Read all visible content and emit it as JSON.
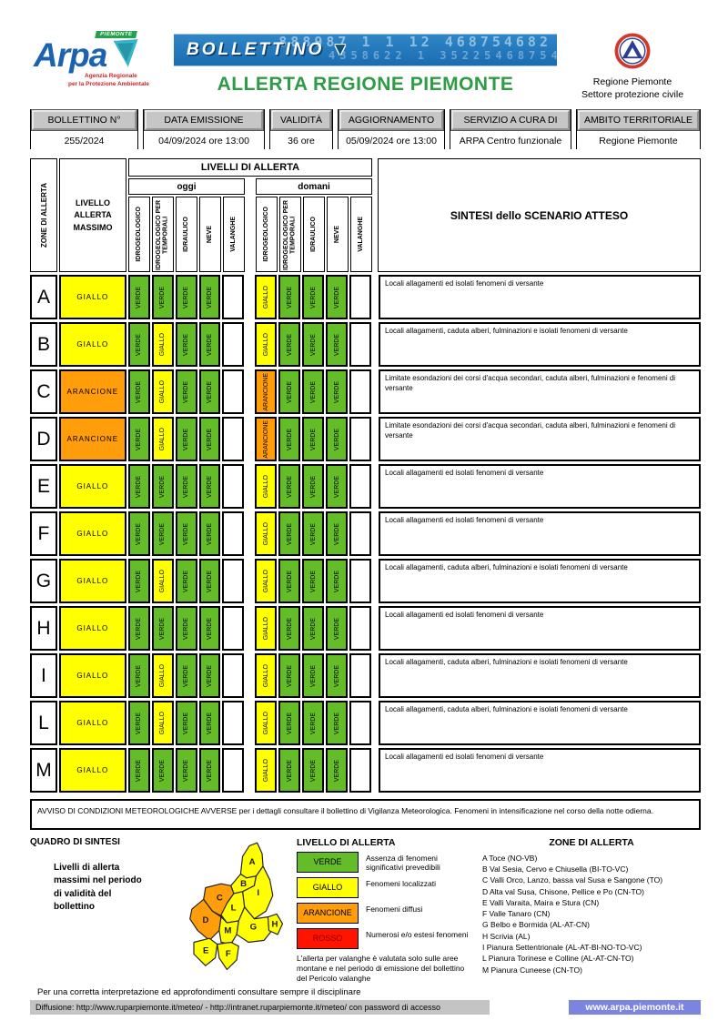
{
  "header": {
    "arpa": {
      "word": "Arpa",
      "flag": "PIEMONTE",
      "caption1": "Agenzia Regionale",
      "caption2": "per la Protezione Ambientale"
    },
    "banner": {
      "title": "BOLLETTINO",
      "digits_top": "888987 1 1 12   468754682",
      "digits_bottom": "4358622 1 352254687546"
    },
    "org": {
      "line1": "Regione Piemonte",
      "line2": "Settore protezione civile"
    },
    "title": "ALLERTA REGIONE PIEMONTE"
  },
  "info_table": {
    "columns": [
      {
        "label": "BOLLETTINO N°",
        "value": "255/2024"
      },
      {
        "label": "DATA EMISSIONE",
        "value": "04/09/2024 ore 13:00"
      },
      {
        "label": "VALIDITÀ",
        "value": "36 ore"
      },
      {
        "label": "AGGIORNAMENTO",
        "value": "05/09/2024 ore 13:00"
      },
      {
        "label": "SERVIZIO A CURA DI",
        "value": "ARPA Centro funzionale"
      },
      {
        "label": "AMBITO TERRITORIALE",
        "value": "Regione Piemonte"
      }
    ]
  },
  "colors": {
    "VERDE": "#64bd28",
    "GIALLO": "#ffff00",
    "ARANCIONE": "#ff9d0a",
    "ROSSO": "#ff1400"
  },
  "alert_table": {
    "corner": "ZONE DI ALLERTA",
    "max_header": "LIVELLO\nALLERTA\nMASSIMO",
    "levels_header": "LIVELLI DI ALLERTA",
    "day_headers": [
      "oggi",
      "domani"
    ],
    "hazard_labels": [
      "IDROGEOLOGICO",
      "IDROGEOLOGICO PER TEMPORALI",
      "IDRAULICO",
      "NEVE",
      "VALANGHE"
    ],
    "sintesi_header": "SINTESI dello SCENARIO ATTESO",
    "rows": [
      {
        "zone": "A",
        "max": "GIALLO",
        "oggi": [
          "VERDE",
          "VERDE",
          "VERDE",
          "VERDE",
          ""
        ],
        "domani": [
          "GIALLO",
          "VERDE",
          "VERDE",
          "VERDE",
          ""
        ],
        "sintesi": "Locali allagamenti ed isolati fenomeni di versante"
      },
      {
        "zone": "B",
        "max": "GIALLO",
        "oggi": [
          "VERDE",
          "GIALLO",
          "VERDE",
          "VERDE",
          ""
        ],
        "domani": [
          "GIALLO",
          "VERDE",
          "VERDE",
          "VERDE",
          ""
        ],
        "sintesi": "Locali allagamenti, caduta alberi, fulminazioni e isolati fenomeni di versante"
      },
      {
        "zone": "C",
        "max": "ARANCIONE",
        "oggi": [
          "VERDE",
          "GIALLO",
          "VERDE",
          "VERDE",
          ""
        ],
        "domani": [
          "ARANCIONE",
          "VERDE",
          "VERDE",
          "VERDE",
          ""
        ],
        "sintesi": "Limitate esondazioni dei corsi d'acqua secondari, caduta alberi, fulminazioni e fenomeni di versante"
      },
      {
        "zone": "D",
        "max": "ARANCIONE",
        "oggi": [
          "VERDE",
          "GIALLO",
          "VERDE",
          "VERDE",
          ""
        ],
        "domani": [
          "ARANCIONE",
          "VERDE",
          "VERDE",
          "VERDE",
          ""
        ],
        "sintesi": "Limitate esondazioni dei corsi d'acqua secondari, caduta alberi, fulminazioni e fenomeni di versante"
      },
      {
        "zone": "E",
        "max": "GIALLO",
        "oggi": [
          "VERDE",
          "VERDE",
          "VERDE",
          "VERDE",
          ""
        ],
        "domani": [
          "GIALLO",
          "VERDE",
          "VERDE",
          "VERDE",
          ""
        ],
        "sintesi": "Locali allagamenti ed isolati fenomeni di versante"
      },
      {
        "zone": "F",
        "max": "GIALLO",
        "oggi": [
          "VERDE",
          "VERDE",
          "VERDE",
          "VERDE",
          ""
        ],
        "domani": [
          "GIALLO",
          "VERDE",
          "VERDE",
          "VERDE",
          ""
        ],
        "sintesi": "Locali allagamenti ed isolati fenomeni di versante"
      },
      {
        "zone": "G",
        "max": "GIALLO",
        "oggi": [
          "VERDE",
          "GIALLO",
          "VERDE",
          "VERDE",
          ""
        ],
        "domani": [
          "GIALLO",
          "VERDE",
          "VERDE",
          "VERDE",
          ""
        ],
        "sintesi": "Locali allagamenti, caduta alberi, fulminazioni e isolati fenomeni di versante"
      },
      {
        "zone": "H",
        "max": "GIALLO",
        "oggi": [
          "VERDE",
          "VERDE",
          "VERDE",
          "VERDE",
          ""
        ],
        "domani": [
          "GIALLO",
          "VERDE",
          "VERDE",
          "VERDE",
          ""
        ],
        "sintesi": "Locali allagamenti ed isolati fenomeni di versante"
      },
      {
        "zone": "I",
        "max": "GIALLO",
        "oggi": [
          "VERDE",
          "GIALLO",
          "VERDE",
          "VERDE",
          ""
        ],
        "domani": [
          "GIALLO",
          "VERDE",
          "VERDE",
          "VERDE",
          ""
        ],
        "sintesi": "Locali allagamenti, caduta alberi, fulminazioni e isolati fenomeni di versante"
      },
      {
        "zone": "L",
        "max": "GIALLO",
        "oggi": [
          "VERDE",
          "GIALLO",
          "VERDE",
          "VERDE",
          ""
        ],
        "domani": [
          "GIALLO",
          "VERDE",
          "VERDE",
          "VERDE",
          ""
        ],
        "sintesi": "Locali allagamenti, caduta alberi, fulminazioni e isolati fenomeni di versante"
      },
      {
        "zone": "M",
        "max": "GIALLO",
        "oggi": [
          "VERDE",
          "VERDE",
          "VERDE",
          "VERDE",
          ""
        ],
        "domani": [
          "GIALLO",
          "VERDE",
          "VERDE",
          "VERDE",
          ""
        ],
        "sintesi": "Locali allagamenti ed isolati fenomeni di versante"
      }
    ]
  },
  "avviso": "AVVISO DI CONDIZIONI METEOROLOGICHE AVVERSE per i dettagli consultare il bollettino di Vigilanza Meteorologica. Fenomeni in intensificazione nel corso della notte odierna.",
  "quadro": {
    "title": "QUADRO DI SINTESI",
    "caption": "Livelli di allerta massimi nel periodo di validità del bollettino",
    "map_zones": [
      {
        "id": "A",
        "level": "GIALLO"
      },
      {
        "id": "B",
        "level": "GIALLO"
      },
      {
        "id": "C",
        "level": "ARANCIONE"
      },
      {
        "id": "I",
        "level": "GIALLO"
      },
      {
        "id": "L",
        "level": "GIALLO"
      },
      {
        "id": "D",
        "level": "ARANCIONE"
      },
      {
        "id": "M",
        "level": "GIALLO"
      },
      {
        "id": "G",
        "level": "GIALLO"
      },
      {
        "id": "H",
        "level": "GIALLO"
      },
      {
        "id": "E",
        "level": "GIALLO"
      },
      {
        "id": "F",
        "level": "GIALLO"
      }
    ]
  },
  "legend": {
    "title": "LIVELLO DI ALLERTA",
    "items": [
      {
        "label": "VERDE",
        "desc": "Assenza di fenomeni significativi prevedibili"
      },
      {
        "label": "GIALLO",
        "desc": "Fenomeni localizzati"
      },
      {
        "label": "ARANCIONE",
        "desc": "Fenomeni diffusi"
      },
      {
        "label": "ROSSO",
        "desc": "Numerosi e/o estesi fenomeni"
      }
    ],
    "note": "L'allerta per valanghe è valutata solo sulle aree montane e nel periodo di emissione del bollettino del Pericolo valanghe"
  },
  "zone_list": {
    "title": "ZONE DI ALLERTA",
    "items": [
      "A Toce (NO-VB)",
      "B Val Sesia, Cervo e Chiusella (BI-TO-VC)",
      "C Valli Orco, Lanzo, bassa val Susa e Sangone (TO)",
      "D Alta val Susa, Chisone, Pellice e Po (CN-TO)",
      "E Valli Varaita, Maira e Stura (CN)",
      "F Valle Tanaro (CN)",
      "G Belbo e Bormida (AL-AT-CN)",
      "H Scrivia (AL)",
      "I Pianura Settentrionale (AL-AT-BI-NO-TO-VC)",
      "L Pianura Torinese e Colline (AL-AT-CN-TO)",
      "M Pianura Cuneese (CN-TO)"
    ]
  },
  "footer": {
    "line1": "Per una corretta interpretazione ed approfondimenti consultare sempre il disciplinare",
    "diffusione": "Diffusione: http://www.ruparpiemonte.it/meteo/ - http://intranet.ruparpiemonte.it/meteo/ con password di accesso",
    "site": "www.arpa.piemonte.it"
  }
}
